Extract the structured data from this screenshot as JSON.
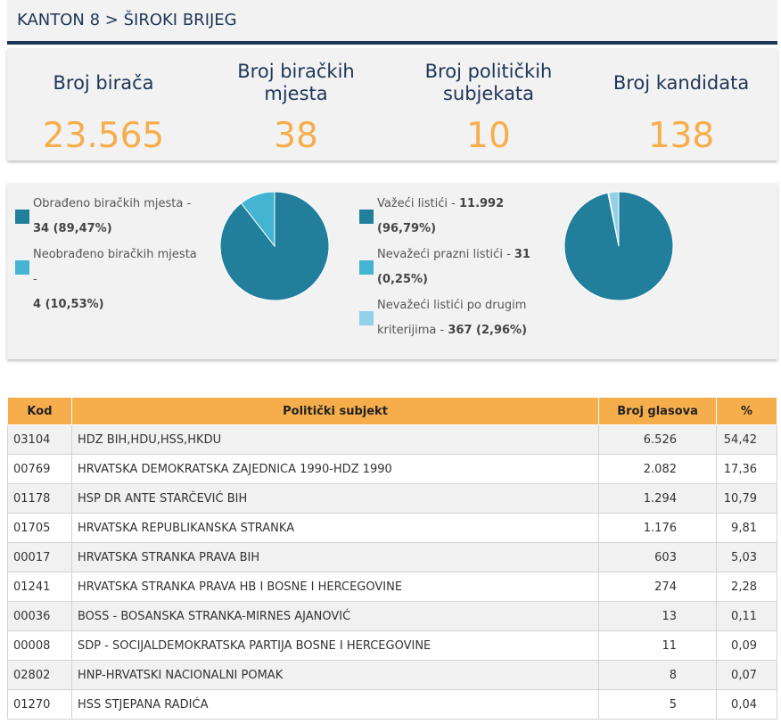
{
  "breadcrumb": "KANTON 8 > ŠIROKI BRIJEG",
  "stats": [
    {
      "label": "Broj birača",
      "value": "23.565"
    },
    {
      "label": "Broj biračkih mjesta",
      "value": "38"
    },
    {
      "label": "Broj političkih subjekata",
      "value": "10"
    },
    {
      "label": "Broj kandidata",
      "value": "138"
    }
  ],
  "stations": {
    "legend": [
      {
        "label": "Obrađeno biračkih mjesta - ",
        "value": "34 (89,47%)",
        "color": "#217f9c"
      },
      {
        "label": "Neobrađeno biračkih mjesta - ",
        "value": "4 (10,53%)",
        "color": "#45b4d3"
      }
    ],
    "fractions": [
      0.8947,
      0.1053
    ]
  },
  "ballots": {
    "legend": [
      {
        "label": "Važeći listići - ",
        "value": "11.992",
        "pct": " (96,79%)",
        "color": "#217f9c"
      },
      {
        "label": "Nevažeći prazni listići - ",
        "value": "31",
        "pct": " (0,25%)",
        "color": "#45b4d3"
      },
      {
        "label": "Nevažeći listići po drugim kriterijima - ",
        "value": "367",
        "pct": " (2,96%)",
        "color": "#93d1e8"
      }
    ],
    "fractions": [
      0.9679,
      0.0025,
      0.0296
    ]
  },
  "table": {
    "headers": [
      "Kod",
      "Politički subjekt",
      "Broj glasova",
      "%"
    ],
    "rows": [
      {
        "kod": "03104",
        "subject": "HDZ BIH,HDU,HSS,HKDU",
        "votes": "6.526",
        "pct": "54,42"
      },
      {
        "kod": "00769",
        "subject": "HRVATSKA DEMOKRATSKA ZAJEDNICA 1990-HDZ 1990",
        "votes": "2.082",
        "pct": "17,36"
      },
      {
        "kod": "01178",
        "subject": "HSP DR ANTE STARČEVIĆ BIH",
        "votes": "1.294",
        "pct": "10,79"
      },
      {
        "kod": "01705",
        "subject": "HRVATSKA REPUBLIKANSKA STRANKA",
        "votes": "1.176",
        "pct": "9,81"
      },
      {
        "kod": "00017",
        "subject": "HRVATSKA STRANKA PRAVA BIH",
        "votes": "603",
        "pct": "5,03"
      },
      {
        "kod": "01241",
        "subject": "HRVATSKA STRANKA PRAVA HB I BOSNE I HERCEGOVINE",
        "votes": "274",
        "pct": "2,28"
      },
      {
        "kod": "00036",
        "subject": "BOSS - BOSANSKA STRANKA-MIRNES AJANOVIĆ",
        "votes": "13",
        "pct": "0,11"
      },
      {
        "kod": "00008",
        "subject": "SDP - SOCIJALDEMOKRATSKA PARTIJA BOSNE I HERCEGOVINE",
        "votes": "11",
        "pct": "0,09"
      },
      {
        "kod": "02802",
        "subject": "HNP-HRVATSKI NACIONALNI POMAK",
        "votes": "8",
        "pct": "0,07"
      },
      {
        "kod": "01270",
        "subject": "HSS STJEPANA RADIĆA",
        "votes": "5",
        "pct": "0,04"
      }
    ]
  }
}
